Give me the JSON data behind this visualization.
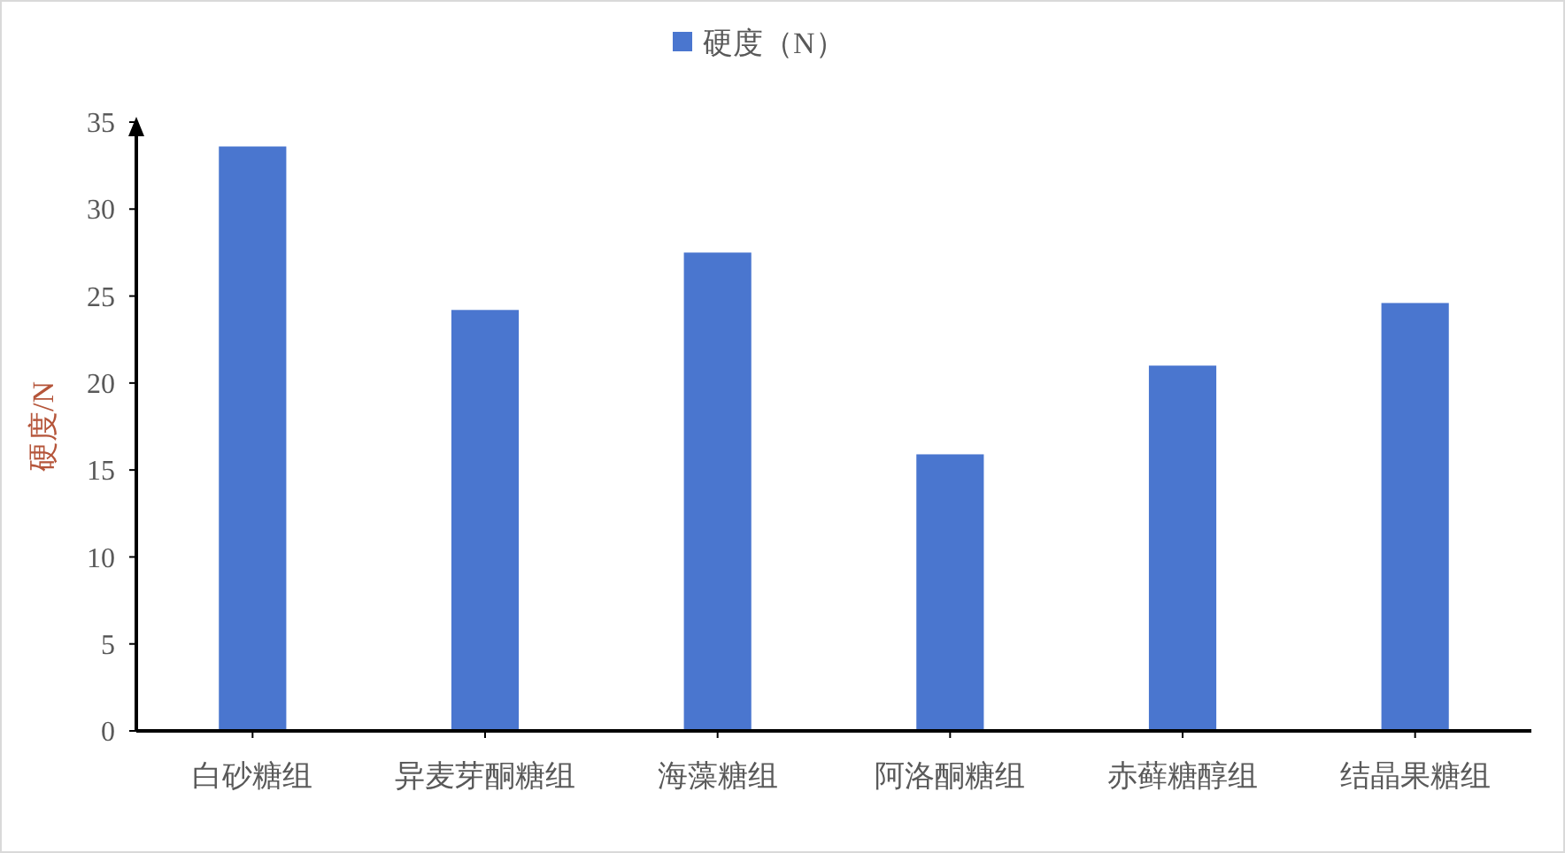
{
  "chart_data": {
    "type": "bar",
    "categories": [
      "白砂糖组",
      "异麦芽酮糖组",
      "海藻糖组",
      "阿洛酮糖组",
      "赤藓糖醇组",
      "结晶果糖组"
    ],
    "series": [
      {
        "name": "硬度（N）",
        "color": "#4a76cf",
        "values": [
          33.6,
          24.2,
          27.5,
          15.9,
          21.0,
          24.6
        ]
      }
    ],
    "ylabel": "硬度/N",
    "ylim": [
      0,
      35
    ],
    "yticks": [
      0,
      5,
      10,
      15,
      20,
      25,
      30,
      35
    ],
    "grid": false,
    "legend": "top"
  }
}
